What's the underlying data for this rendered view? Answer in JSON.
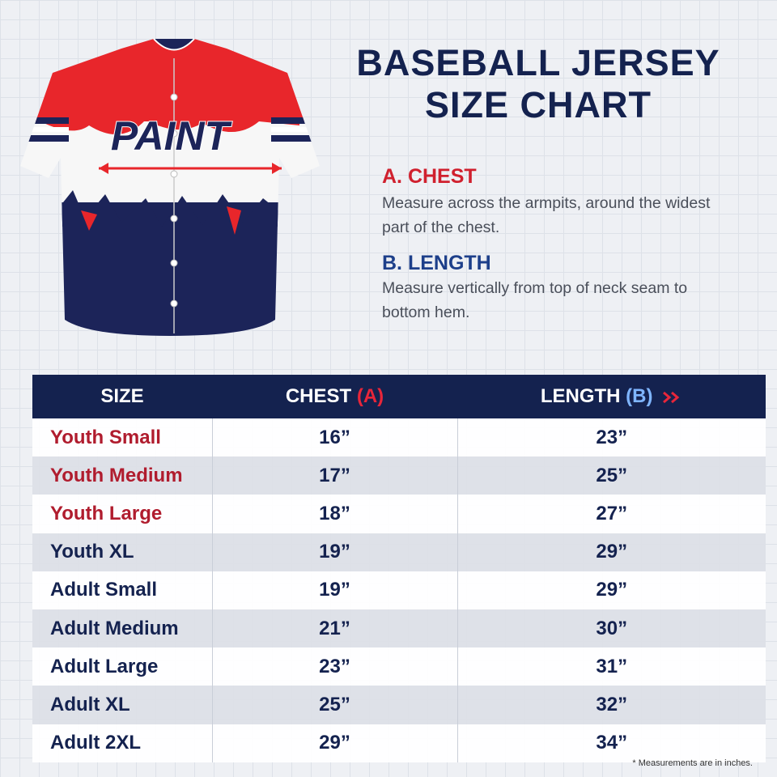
{
  "header": {
    "title_lines": [
      "BASEBALL JERSEY",
      "SIZE CHART"
    ]
  },
  "jersey": {
    "logo": "PAINT"
  },
  "measures": [
    {
      "label": "A. CHEST",
      "description": "Measure across the armpits, around the widest part of the chest."
    },
    {
      "label": "B. LENGTH",
      "description": "Measure vertically from top of neck seam to bottom hem."
    }
  ],
  "table": {
    "columns": [
      {
        "label": "SIZE"
      },
      {
        "label": "CHEST",
        "marker": "(A)"
      },
      {
        "label": "LENGTH",
        "marker": "(B)"
      }
    ],
    "rows": [
      [
        "Youth Small",
        "16”",
        "23”"
      ],
      [
        "Youth Medium",
        "17”",
        "25”"
      ],
      [
        "Youth Large",
        "18”",
        "27”"
      ],
      [
        "Youth XL",
        "19”",
        "29”"
      ],
      [
        "Adult Small",
        "19”",
        "29”"
      ],
      [
        "Adult Medium",
        "21”",
        "30”"
      ],
      [
        "Adult Large",
        "23”",
        "31”"
      ],
      [
        "Adult XL",
        "25”",
        "32”"
      ],
      [
        "Adult 2XL",
        "29”",
        "34”"
      ]
    ]
  },
  "footnote": "* Measurements are in inches."
}
